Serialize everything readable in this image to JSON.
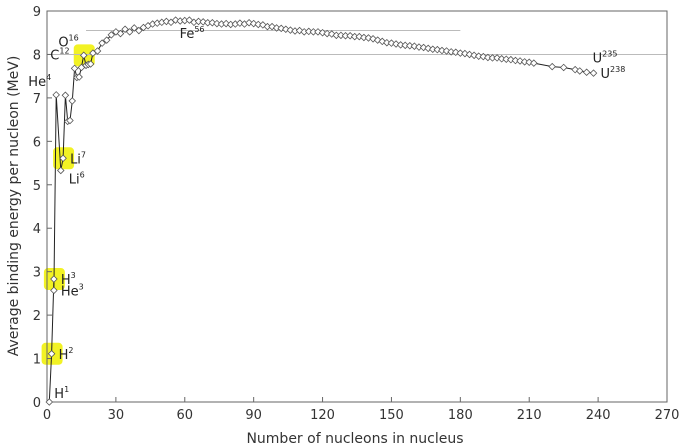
{
  "chart_data": {
    "type": "scatter",
    "xlabel": "Number of nucleons in nucleus",
    "ylabel": "Average binding energy per nucleon (MeV)",
    "xlim": [
      0,
      270
    ],
    "ylim": [
      0,
      9
    ],
    "x_ticks": [
      "0",
      "30",
      "60",
      "90",
      "120",
      "150",
      "180",
      "210",
      "240",
      "270"
    ],
    "y_ticks": [
      "0",
      "1",
      "2",
      "3",
      "4",
      "5",
      "6",
      "7",
      "8",
      "9"
    ],
    "grid": false,
    "reference_lines": [
      {
        "y": 8.0,
        "x_range": [
          0,
          270
        ]
      },
      {
        "y": 8.55,
        "x_range": [
          17,
          180
        ]
      }
    ],
    "series": [
      {
        "points": [
          [
            1,
            0.0
          ],
          [
            2,
            1.11
          ],
          [
            3,
            2.83
          ],
          [
            3,
            2.57
          ],
          [
            4,
            7.07
          ],
          [
            6,
            5.33
          ],
          [
            7,
            5.61
          ],
          [
            8,
            7.06
          ],
          [
            9,
            6.46
          ],
          [
            10,
            6.48
          ],
          [
            11,
            6.93
          ],
          [
            12,
            7.68
          ],
          [
            13,
            7.47
          ],
          [
            14,
            7.48
          ],
          [
            15,
            7.7
          ],
          [
            16,
            7.98
          ],
          [
            17,
            7.75
          ],
          [
            18,
            7.77
          ],
          [
            19,
            7.78
          ],
          [
            20,
            8.03
          ],
          [
            22,
            8.08
          ],
          [
            24,
            8.26
          ],
          [
            26,
            8.33
          ],
          [
            28,
            8.45
          ],
          [
            30,
            8.52
          ],
          [
            32,
            8.48
          ],
          [
            34,
            8.58
          ],
          [
            36,
            8.52
          ],
          [
            38,
            8.61
          ],
          [
            40,
            8.55
          ],
          [
            42,
            8.62
          ],
          [
            44,
            8.66
          ],
          [
            46,
            8.7
          ],
          [
            48,
            8.72
          ],
          [
            50,
            8.74
          ],
          [
            52,
            8.76
          ],
          [
            54,
            8.74
          ],
          [
            56,
            8.79
          ],
          [
            58,
            8.77
          ],
          [
            60,
            8.78
          ],
          [
            62,
            8.79
          ],
          [
            64,
            8.74
          ],
          [
            66,
            8.76
          ],
          [
            68,
            8.75
          ],
          [
            70,
            8.73
          ],
          [
            72,
            8.73
          ],
          [
            74,
            8.71
          ],
          [
            76,
            8.7
          ],
          [
            78,
            8.71
          ],
          [
            80,
            8.69
          ],
          [
            82,
            8.7
          ],
          [
            84,
            8.72
          ],
          [
            86,
            8.7
          ],
          [
            88,
            8.73
          ],
          [
            90,
            8.71
          ],
          [
            92,
            8.69
          ],
          [
            94,
            8.68
          ],
          [
            96,
            8.64
          ],
          [
            98,
            8.64
          ],
          [
            100,
            8.61
          ],
          [
            102,
            8.6
          ],
          [
            104,
            8.58
          ],
          [
            106,
            8.56
          ],
          [
            108,
            8.54
          ],
          [
            110,
            8.55
          ],
          [
            112,
            8.52
          ],
          [
            114,
            8.53
          ],
          [
            116,
            8.52
          ],
          [
            118,
            8.52
          ],
          [
            120,
            8.5
          ],
          [
            122,
            8.48
          ],
          [
            124,
            8.47
          ],
          [
            126,
            8.44
          ],
          [
            128,
            8.44
          ],
          [
            130,
            8.43
          ],
          [
            132,
            8.43
          ],
          [
            134,
            8.41
          ],
          [
            136,
            8.41
          ],
          [
            138,
            8.39
          ],
          [
            140,
            8.38
          ],
          [
            142,
            8.36
          ],
          [
            144,
            8.33
          ],
          [
            146,
            8.3
          ],
          [
            148,
            8.27
          ],
          [
            150,
            8.26
          ],
          [
            152,
            8.24
          ],
          [
            154,
            8.22
          ],
          [
            156,
            8.21
          ],
          [
            158,
            8.2
          ],
          [
            160,
            8.19
          ],
          [
            162,
            8.17
          ],
          [
            164,
            8.16
          ],
          [
            166,
            8.14
          ],
          [
            168,
            8.12
          ],
          [
            170,
            8.11
          ],
          [
            172,
            8.09
          ],
          [
            174,
            8.08
          ],
          [
            176,
            8.06
          ],
          [
            178,
            8.05
          ],
          [
            180,
            8.03
          ],
          [
            182,
            8.02
          ],
          [
            184,
            8.0
          ],
          [
            186,
            7.98
          ],
          [
            188,
            7.96
          ],
          [
            190,
            7.95
          ],
          [
            192,
            7.93
          ],
          [
            194,
            7.92
          ],
          [
            196,
            7.92
          ],
          [
            198,
            7.9
          ],
          [
            200,
            7.89
          ],
          [
            202,
            7.88
          ],
          [
            204,
            7.86
          ],
          [
            206,
            7.85
          ],
          [
            208,
            7.83
          ],
          [
            210,
            7.82
          ],
          [
            212,
            7.8
          ],
          [
            220,
            7.72
          ],
          [
            225,
            7.7
          ],
          [
            230,
            7.65
          ],
          [
            232,
            7.62
          ],
          [
            235,
            7.59
          ],
          [
            238,
            7.57
          ]
        ]
      }
    ],
    "annotations": [
      {
        "symbol": "H",
        "mass": "1",
        "x": 1,
        "y": 0.0,
        "highlight": false,
        "placement": "right-above"
      },
      {
        "symbol": "H",
        "mass": "2",
        "x": 2,
        "y": 1.11,
        "highlight": true,
        "placement": "right"
      },
      {
        "symbol": "H",
        "mass": "3",
        "x": 3,
        "y": 2.83,
        "highlight": true,
        "placement": "right"
      },
      {
        "symbol": "He",
        "mass": "3",
        "x": 3,
        "y": 2.57,
        "highlight": false,
        "placement": "right"
      },
      {
        "symbol": "He",
        "mass": "4",
        "x": 4,
        "y": 7.07,
        "highlight": false,
        "placement": "above-left"
      },
      {
        "symbol": "Li",
        "mass": "7",
        "x": 7,
        "y": 5.61,
        "highlight": true,
        "placement": "right"
      },
      {
        "symbol": "Li",
        "mass": "6",
        "x": 6,
        "y": 5.33,
        "highlight": false,
        "placement": "right-below"
      },
      {
        "symbol": "C",
        "mass": "12",
        "x": 12,
        "y": 7.68,
        "highlight": false,
        "placement": "above-left"
      },
      {
        "symbol": "O",
        "mass": "16",
        "x": 16,
        "y": 7.98,
        "highlight": true,
        "placement": "above-left"
      },
      {
        "symbol": "Fe",
        "mass": "56",
        "x": 56,
        "y": 8.79,
        "highlight": false,
        "placement": "below-right"
      },
      {
        "symbol": "U",
        "mass": "235",
        "x": 235,
        "y": 7.59,
        "highlight": false,
        "placement": "above-right"
      },
      {
        "symbol": "U",
        "mass": "238",
        "x": 238,
        "y": 7.57,
        "highlight": false,
        "placement": "right"
      }
    ],
    "colors": {
      "line": "#222222",
      "marker_fill": "#ffffff",
      "marker_stroke": "#555555",
      "highlight": "#f2f224",
      "reference_line": "#bbbbbb",
      "frame": "#666666"
    }
  }
}
